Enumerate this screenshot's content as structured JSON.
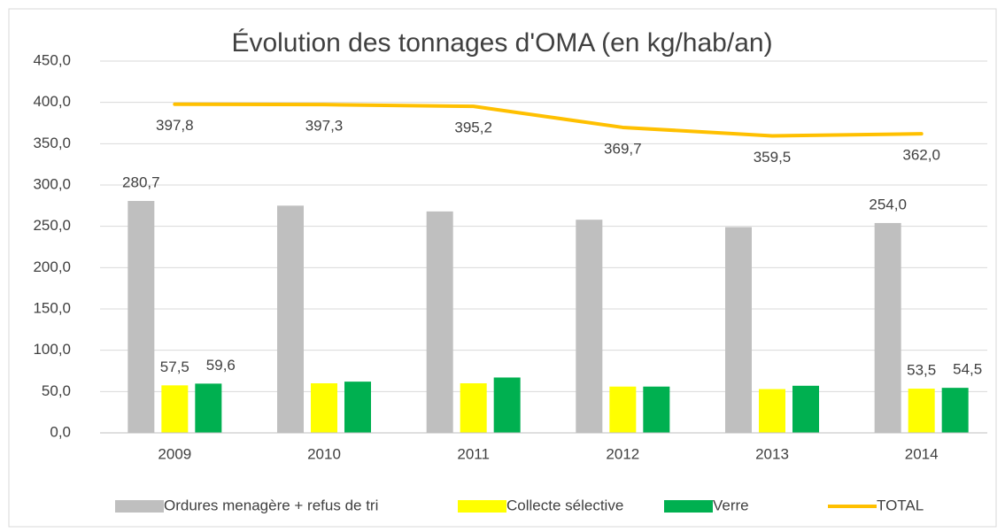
{
  "chart_data": {
    "type": "bar-line",
    "title": "Évolution des tonnages d'OMA (en kg/hab/an)",
    "categories": [
      "2009",
      "2010",
      "2011",
      "2012",
      "2013",
      "2014"
    ],
    "series": [
      {
        "name": "Ordures menagère + refus de tri",
        "type": "bar",
        "color": "#bfbfbf",
        "values": [
          280.7,
          275,
          268,
          258,
          249,
          254.0
        ],
        "value_labels": [
          "280,7",
          null,
          null,
          null,
          null,
          "254,0"
        ]
      },
      {
        "name": "Collecte sélective",
        "type": "bar",
        "color": "#ffff00",
        "values": [
          57.5,
          60,
          60,
          56,
          53,
          53.5
        ],
        "value_labels": [
          "57,5",
          null,
          null,
          null,
          null,
          "53,5"
        ]
      },
      {
        "name": "Verre",
        "type": "bar",
        "color": "#00b050",
        "values": [
          59.6,
          62,
          67,
          56,
          57,
          54.5
        ],
        "value_labels": [
          "59,6",
          null,
          null,
          null,
          null,
          "54,5"
        ]
      },
      {
        "name": "TOTAL",
        "type": "line",
        "color": "#ffc000",
        "values": [
          397.8,
          397.3,
          395.2,
          369.7,
          359.5,
          362.0
        ],
        "value_labels": [
          "397,8",
          "397,3",
          "395,2",
          "369,7",
          "359,5",
          "362,0"
        ]
      }
    ],
    "ylim": [
      0,
      450
    ],
    "yticks": [
      {
        "value": 0,
        "label": "0,0"
      },
      {
        "value": 50,
        "label": "50,0"
      },
      {
        "value": 100,
        "label": "100,0"
      },
      {
        "value": 150,
        "label": "150,0"
      },
      {
        "value": 200,
        "label": "200,0"
      },
      {
        "value": 250,
        "label": "250,0"
      },
      {
        "value": 300,
        "label": "300,0"
      },
      {
        "value": 350,
        "label": "350,0"
      },
      {
        "value": 400,
        "label": "400,0"
      },
      {
        "value": 450,
        "label": "450,0"
      }
    ],
    "grid": true,
    "legend": "bottom"
  }
}
